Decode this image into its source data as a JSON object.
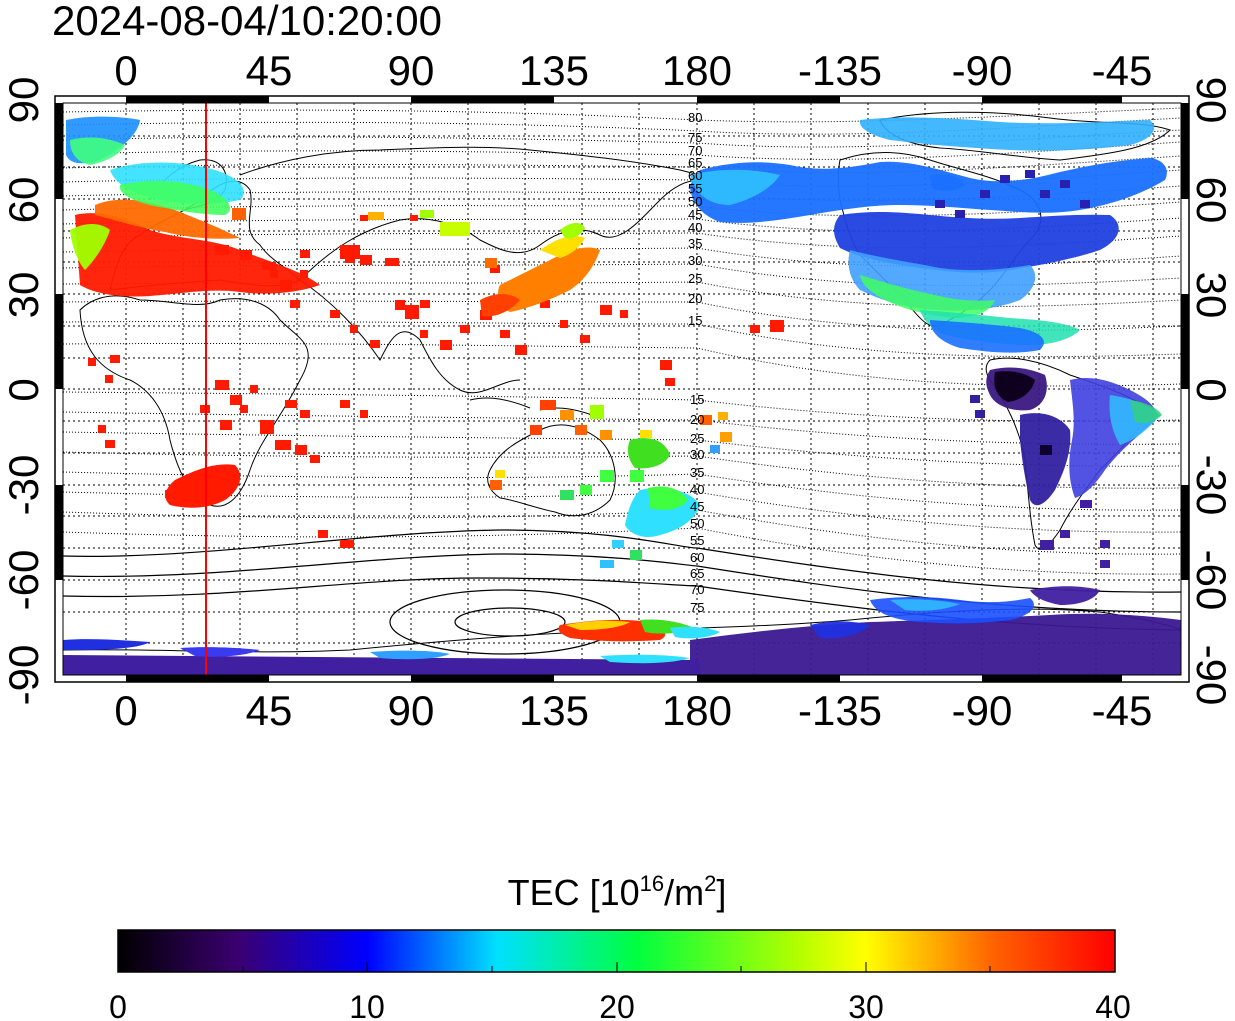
{
  "timestamp": "2024-08-04/10:20:00",
  "x_tick_labels": [
    "0",
    "45",
    "90",
    "135",
    "180",
    "-135",
    "-90",
    "-45"
  ],
  "y_tick_labels": [
    "90",
    "60",
    "30",
    "0",
    "-30",
    "-60",
    "-90"
  ],
  "contour_labels_north": [
    "80",
    "75",
    "70",
    "65",
    "60",
    "55",
    "50",
    "45",
    "40",
    "35",
    "30",
    "25",
    "20",
    "15"
  ],
  "contour_labels_south": [
    "15",
    "20",
    "25",
    "30",
    "35",
    "40",
    "45",
    "50",
    "55",
    "60",
    "65",
    "70",
    "75"
  ],
  "colorbar": {
    "title_prefix": "TEC  [10",
    "title_exp": "16",
    "title_unit": "/m",
    "title_unit_exp": "2",
    "title_suffix": "]",
    "tick_labels": [
      "0",
      "10",
      "20",
      "30",
      "40"
    ],
    "colors": [
      "#000000",
      "#3a0070",
      "#0000ff",
      "#00e0ff",
      "#00ff40",
      "#ffff00",
      "#ff6000",
      "#ff0000"
    ]
  },
  "terminator_color": "#ff0000",
  "tec_regions": [
    {
      "name": "europe",
      "color": "#ff1a00"
    },
    {
      "name": "north-atlantic",
      "color": "#00c0ff"
    },
    {
      "name": "north-america",
      "color": "#1040ff"
    },
    {
      "name": "south-america",
      "color": "#4020a0"
    },
    {
      "name": "southern-africa",
      "color": "#ff0000"
    },
    {
      "name": "east-asia",
      "color": "#ffa000"
    },
    {
      "name": "australia-nz",
      "color": "#40e020"
    },
    {
      "name": "antarctica",
      "color": "#4020a0"
    }
  ]
}
